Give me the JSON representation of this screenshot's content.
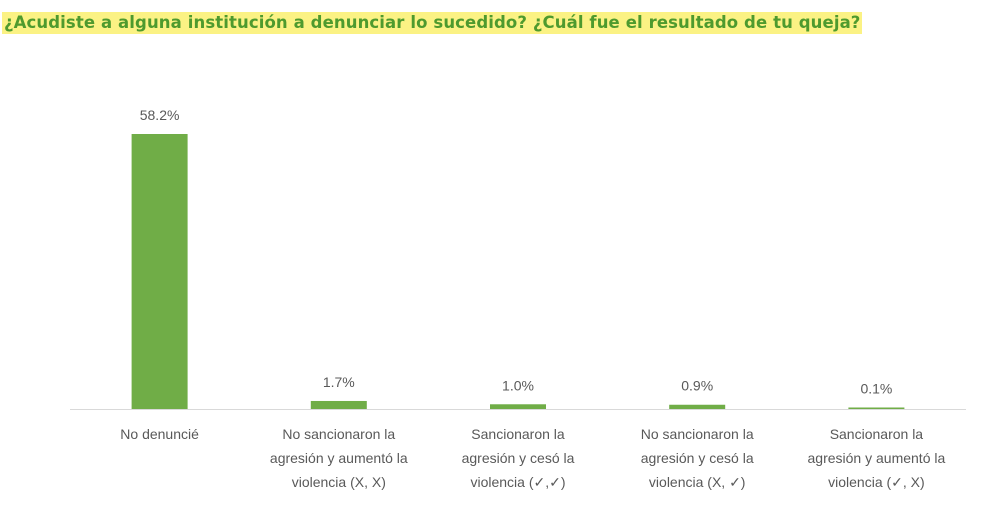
{
  "title": "¿Acudiste a alguna institución a denunciar lo sucedido? ¿Cuál fue el resultado de tu queja?",
  "colors": {
    "bar": "#70ad47",
    "axis": "#d9d9d9",
    "title_text": "#4e9a2e",
    "title_highlight": "#fbf284",
    "label_text": "#595959"
  },
  "chart_data": {
    "type": "bar",
    "categories": [
      [
        "No denuncié"
      ],
      [
        "No sancionaron la",
        "agresión y aumentó la",
        "violencia (X, X)"
      ],
      [
        "Sancionaron la",
        "agresión y cesó la",
        "violencia (✓,✓)"
      ],
      [
        "No sancionaron la",
        "agresión y cesó la",
        "violencia (X, ✓)"
      ],
      [
        "Sancionaron la",
        "agresión y aumentó la",
        "violencia (✓, X)"
      ]
    ],
    "values": [
      58.2,
      1.7,
      1.0,
      0.9,
      0.1
    ],
    "value_labels": [
      "58.2%",
      "1.7%",
      "1.0%",
      "0.9%",
      "0.1%"
    ],
    "unit": "%",
    "grid": false,
    "legend": "none"
  }
}
